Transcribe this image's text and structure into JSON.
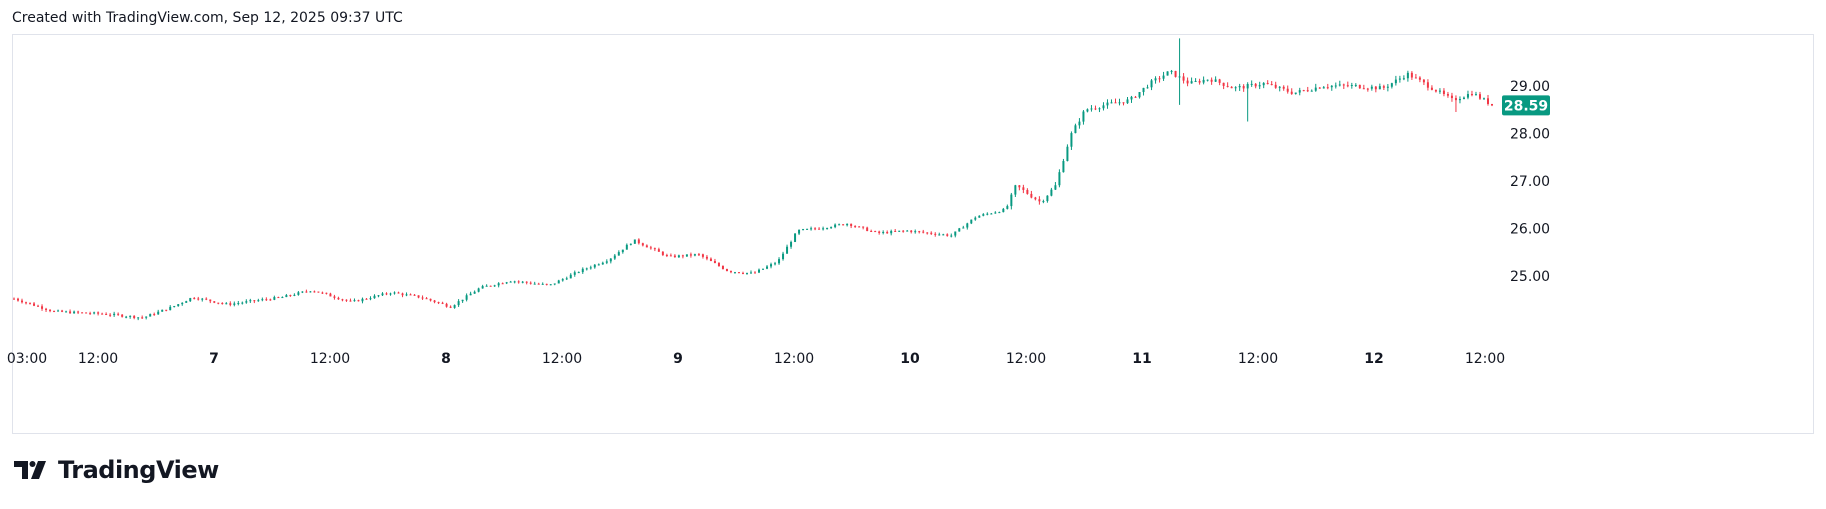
{
  "header": {
    "caption": "Created with TradingView.com, Sep 12, 2025 09:37 UTC"
  },
  "branding": {
    "logo_text": "TradingView",
    "logo_icon": "tradingview-logo-icon"
  },
  "colors": {
    "up": "#089981",
    "down": "#f23645",
    "price_badge": "#089981",
    "border": "#e0e3eb"
  },
  "chart_data": {
    "type": "candlestick",
    "x_ticks": [
      {
        "label": "03:00",
        "bold": false
      },
      {
        "label": "12:00",
        "bold": false
      },
      {
        "label": "7",
        "bold": true
      },
      {
        "label": "12:00",
        "bold": false
      },
      {
        "label": "8",
        "bold": true
      },
      {
        "label": "12:00",
        "bold": false
      },
      {
        "label": "9",
        "bold": true
      },
      {
        "label": "12:00",
        "bold": false
      },
      {
        "label": "10",
        "bold": true
      },
      {
        "label": "12:00",
        "bold": false
      },
      {
        "label": "11",
        "bold": true
      },
      {
        "label": "12:00",
        "bold": false
      },
      {
        "label": "12",
        "bold": true
      },
      {
        "label": "12:00",
        "bold": false
      }
    ],
    "y_ticks": [
      "29.00",
      "28.00",
      "27.00",
      "26.00",
      "25.00"
    ],
    "y_tick_values": [
      29,
      28,
      27,
      26,
      25
    ],
    "ylim": [
      23.65,
      30.05
    ],
    "last_price": 28.59,
    "last_price_label": "28.59",
    "price_path": [
      [
        0,
        24.52
      ],
      [
        40,
        24.25
      ],
      [
        90,
        24.2
      ],
      [
        130,
        24.12
      ],
      [
        160,
        24.35
      ],
      [
        180,
        24.55
      ],
      [
        215,
        24.4
      ],
      [
        270,
        24.55
      ],
      [
        300,
        24.7
      ],
      [
        340,
        24.45
      ],
      [
        380,
        24.65
      ],
      [
        410,
        24.55
      ],
      [
        440,
        24.35
      ],
      [
        470,
        24.75
      ],
      [
        500,
        24.9
      ],
      [
        540,
        24.8
      ],
      [
        570,
        25.1
      ],
      [
        600,
        25.35
      ],
      [
        625,
        25.75
      ],
      [
        660,
        25.4
      ],
      [
        690,
        25.45
      ],
      [
        720,
        25.1
      ],
      [
        745,
        25.05
      ],
      [
        770,
        25.3
      ],
      [
        790,
        25.95
      ],
      [
        810,
        26.0
      ],
      [
        840,
        26.1
      ],
      [
        870,
        25.9
      ],
      [
        900,
        25.95
      ],
      [
        945,
        25.85
      ],
      [
        970,
        26.25
      ],
      [
        1000,
        26.4
      ],
      [
        1010,
        26.9
      ],
      [
        1035,
        26.55
      ],
      [
        1050,
        26.9
      ],
      [
        1065,
        27.95
      ],
      [
        1080,
        28.5
      ],
      [
        1100,
        28.6
      ],
      [
        1125,
        28.7
      ],
      [
        1145,
        29.05
      ],
      [
        1165,
        29.3
      ],
      [
        1185,
        29.05
      ],
      [
        1205,
        29.15
      ],
      [
        1230,
        28.95
      ],
      [
        1260,
        29.05
      ],
      [
        1290,
        28.85
      ],
      [
        1320,
        29.0
      ],
      [
        1350,
        29.0
      ],
      [
        1380,
        28.95
      ],
      [
        1405,
        29.25
      ],
      [
        1430,
        28.95
      ],
      [
        1450,
        28.7
      ],
      [
        1470,
        28.85
      ],
      [
        1490,
        28.6
      ]
    ],
    "spikes": [
      {
        "x_index_ratio": 0.788,
        "high": 30.0,
        "low": 28.6
      },
      {
        "x_index_ratio": 0.835,
        "high": 29.05,
        "low": 28.25
      },
      {
        "x_index_ratio": 0.975,
        "high": 28.8,
        "low": 28.45
      }
    ]
  }
}
